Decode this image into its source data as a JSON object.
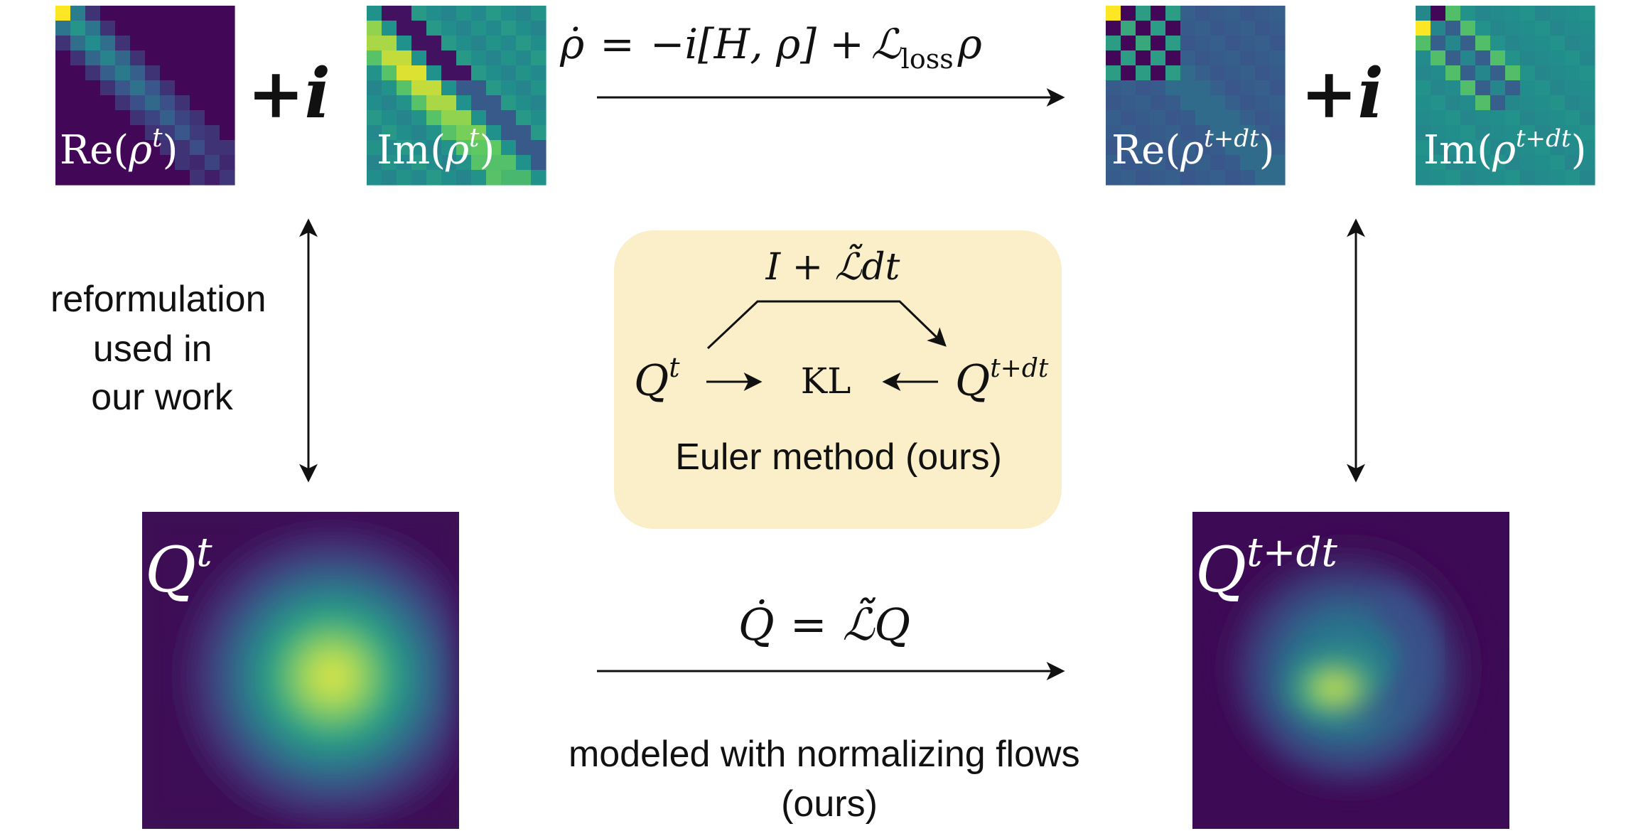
{
  "colors": {
    "background": "#ffffff",
    "euler_box": "#faefc8",
    "viridis_dark": "#440154",
    "viridis_teal": "#3b8a8c",
    "viridis_yellow": "#fde725",
    "arrow": "#111111"
  },
  "matrices": {
    "re_t": {
      "fn": "Re",
      "arg": "ρ",
      "sup": "t"
    },
    "im_t": {
      "fn": "Im",
      "arg": "ρ",
      "sup": "t"
    },
    "re_tdt": {
      "fn": "Re",
      "arg": "ρ",
      "sup": "t+dt"
    },
    "im_tdt": {
      "fn": "Im",
      "arg": "ρ",
      "sup": "t+dt"
    },
    "plus_i": "+i"
  },
  "top_equation": {
    "lhs": "ρ̇",
    "eq": "=",
    "rhs_a": "−i[H, ρ] +",
    "rhs_L": "ℒ",
    "rhs_sub": "loss",
    "rhs_b": "ρ"
  },
  "left_label": {
    "lines": [
      "reformulation",
      "used in",
      "our work"
    ]
  },
  "euler_box": {
    "operator": "I + ℒ̃dt",
    "q_left": "Q",
    "q_left_sup": "t",
    "kl": "KL",
    "q_right": "Q",
    "q_right_sup": "t+dt",
    "caption": "Euler method (ours)"
  },
  "distributions": {
    "left": {
      "symbol": "Q",
      "sup": "t"
    },
    "right": {
      "symbol": "Q",
      "sup": "t+dt"
    }
  },
  "bottom_equation": {
    "lhs": "Q̇",
    "eq": "=",
    "rhs": "ℒ̃Q"
  },
  "bottom_caption": {
    "lines": [
      "modeled with normalizing flows",
      "(ours)"
    ]
  }
}
